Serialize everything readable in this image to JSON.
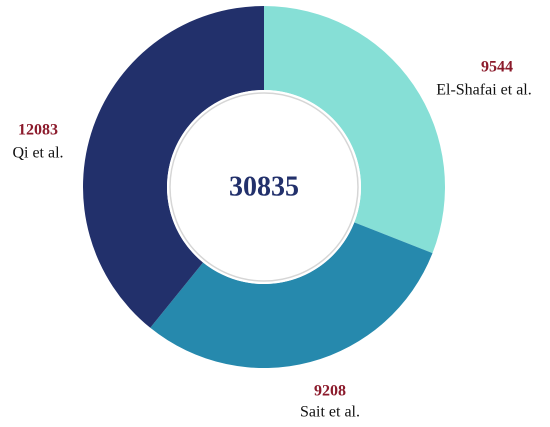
{
  "chart_data": {
    "type": "donut",
    "total": 30835,
    "categories": [
      "El-Shafai et al.",
      "Sait et al.",
      "Qi et al."
    ],
    "values": [
      9544,
      9208,
      12083
    ],
    "colors": [
      "#86dfd6",
      "#2689ad",
      "#22306b"
    ]
  }
}
